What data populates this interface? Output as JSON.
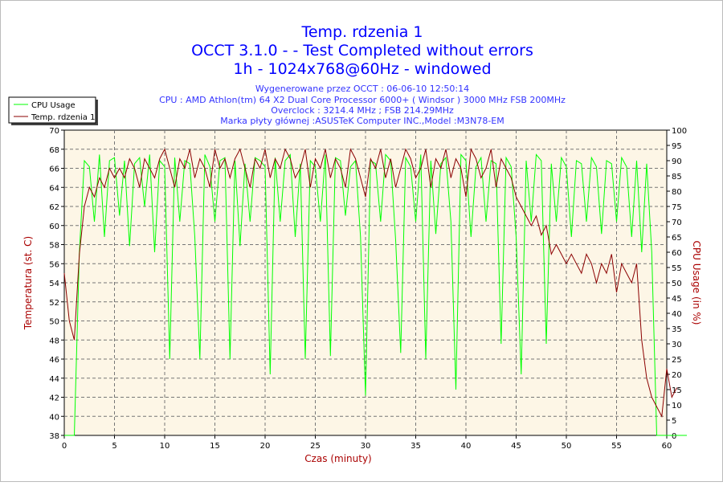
{
  "chart_data": {
    "type": "line",
    "title": [
      "Temp. rdzenia 1",
      "OCCT 3.1.0 -  - Test Completed without errors",
      "1h - 1024x768@60Hz - windowed"
    ],
    "subtitle": [
      "Wygenerowane przez OCCT : 06-06-10 12:50:14",
      "CPU : AMD Athlon(tm) 64 X2 Dual Core Processor 6000+ ( Windsor ) 3000 MHz FSB 200MHz",
      "Overclock : 3214.4 MHz ; FSB 214.29MHz",
      "Marka płyty głównej :ASUSTeK Computer INC.,Model :M3N78-EM"
    ],
    "xlabel": "Czas (minuty)",
    "ylabel": "Temperatura (st. C)",
    "y2label": "CPU Usage (in %)",
    "xlim": [
      0,
      60
    ],
    "ylim": [
      38,
      70
    ],
    "y2lim": [
      0,
      100
    ],
    "xticks": [
      0,
      5,
      10,
      15,
      20,
      25,
      30,
      35,
      40,
      45,
      50,
      55,
      60
    ],
    "yticks": [
      38,
      40,
      42,
      44,
      46,
      48,
      50,
      52,
      54,
      56,
      58,
      60,
      62,
      64,
      66,
      68,
      70
    ],
    "y2ticks": [
      0,
      5,
      10,
      15,
      20,
      25,
      30,
      35,
      40,
      45,
      50,
      55,
      60,
      65,
      70,
      75,
      80,
      85,
      90,
      95,
      100
    ],
    "grid": true,
    "legend": "top-left",
    "colors": {
      "cpu": "#00ff00",
      "temp": "#8b0000",
      "title": "#0000ff",
      "axisLabel": "#aa0000",
      "bg": "#fdf6e6"
    },
    "series": [
      {
        "name": "CPU Usage",
        "axis": "right",
        "x_step": 0.5,
        "values": [
          0,
          0,
          0,
          60,
          90,
          88,
          70,
          92,
          65,
          90,
          91,
          72,
          90,
          62,
          89,
          91,
          75,
          92,
          60,
          90,
          88,
          25,
          91,
          70,
          90,
          89,
          65,
          25,
          92,
          88,
          70,
          90,
          91,
          25,
          90,
          62,
          89,
          70,
          91,
          90,
          88,
          20,
          91,
          70,
          90,
          92,
          65,
          89,
          25,
          90,
          88,
          70,
          92,
          26,
          91,
          90,
          72,
          88,
          90,
          65,
          13,
          90,
          89,
          70,
          92,
          90,
          64,
          27,
          91,
          88,
          70,
          92,
          25,
          90,
          66,
          89,
          91,
          70,
          15,
          92,
          90,
          65,
          88,
          91,
          70,
          90,
          89,
          30,
          91,
          88,
          65,
          20,
          90,
          70,
          92,
          90,
          30,
          89,
          70,
          91,
          88,
          65,
          90,
          89,
          70,
          91,
          88,
          66,
          90,
          89,
          70,
          91,
          88,
          65,
          90,
          60,
          89,
          60,
          0,
          0,
          0,
          0,
          0,
          0,
          0
        ]
      },
      {
        "name": "Temp. rdzenia 1",
        "axis": "left",
        "x_step": 0.5,
        "values": [
          55,
          50,
          48,
          57,
          62,
          64,
          63,
          65,
          64,
          66,
          65,
          66,
          65,
          67,
          66,
          64,
          67,
          66,
          65,
          67,
          68,
          66,
          64,
          67,
          66,
          68,
          65,
          67,
          66,
          64,
          68,
          66,
          67,
          65,
          67,
          68,
          66,
          64,
          67,
          66,
          68,
          65,
          67,
          66,
          68,
          67,
          65,
          66,
          68,
          64,
          67,
          66,
          68,
          65,
          67,
          66,
          64,
          68,
          67,
          65,
          63,
          67,
          66,
          68,
          65,
          67,
          64,
          66,
          68,
          67,
          65,
          66,
          68,
          64,
          67,
          66,
          68,
          65,
          67,
          66,
          63,
          68,
          67,
          65,
          66,
          68,
          64,
          67,
          66,
          65,
          63,
          62,
          61,
          60,
          61,
          59,
          60,
          57,
          58,
          57,
          56,
          57,
          56,
          55,
          57,
          56,
          54,
          56,
          55,
          57,
          53,
          56,
          55,
          54,
          56,
          48,
          44,
          42,
          41,
          40,
          45,
          42,
          43
        ]
      }
    ]
  }
}
